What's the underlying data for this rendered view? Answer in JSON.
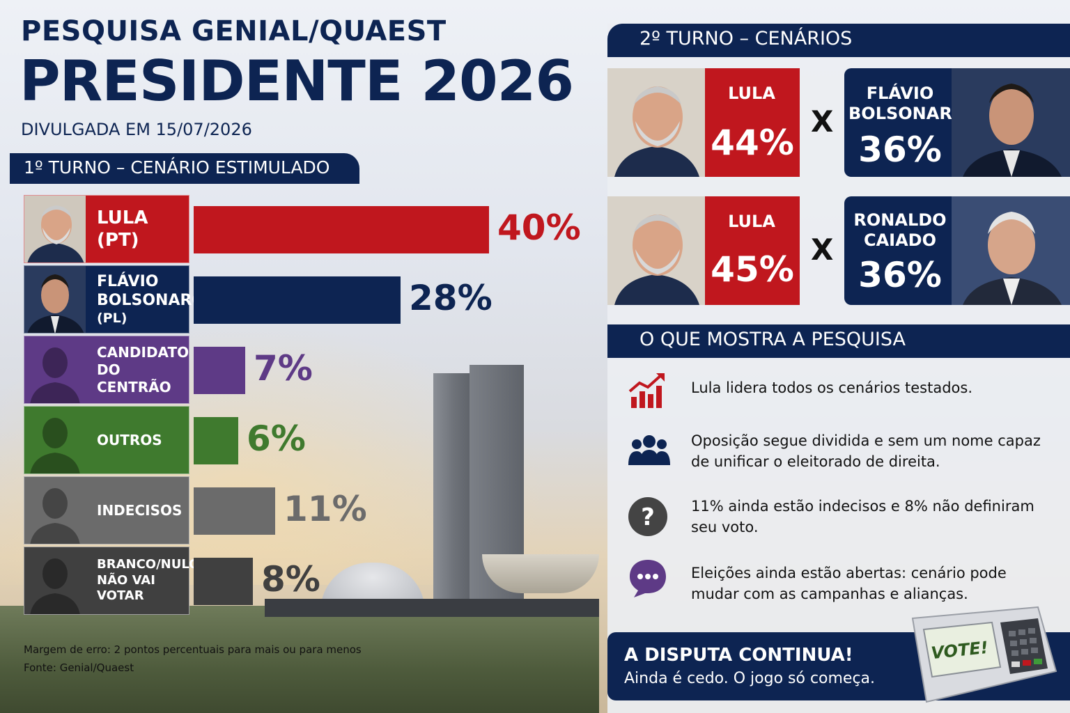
{
  "header": {
    "pre_title": "PESQUISA GENIAL/QUAEST",
    "title": "PRESIDENTE 2026",
    "date_line": "DIVULGADA EM 15/07/2026"
  },
  "first_round": {
    "section_title": "1º TURNO – CENÁRIO ESTIMULADO"
  },
  "chart_data": {
    "type": "bar",
    "title": "1º TURNO – CENÁRIO ESTIMULADO",
    "categories": [
      [
        "LULA",
        "(PT)"
      ],
      [
        "FLÁVIO",
        "BOLSONARO",
        "(PL)"
      ],
      [
        "CANDIDATO",
        "DO CENTRÃO"
      ],
      [
        "OUTROS"
      ],
      [
        "INDECISOS"
      ],
      [
        "BRANCO/NULO/",
        "NÃO VAI VOTAR"
      ]
    ],
    "values": [
      40,
      28,
      7,
      6,
      11,
      8
    ],
    "value_labels": [
      "40%",
      "28%",
      "7%",
      "6%",
      "11%",
      "8%"
    ],
    "colors": [
      "#c0171e",
      "#0d2452",
      "#5e3a86",
      "#3f7a2e",
      "#6b6b6b",
      "#404040"
    ],
    "orientation": "horizontal",
    "xlim": [
      0,
      40
    ]
  },
  "second_round": {
    "section_title": "2º TURNO – CENÁRIOS",
    "vs_symbol": "X",
    "scenarios": [
      {
        "left_name": "LULA",
        "left_pct": "44%",
        "right_name": [
          "FLÁVIO",
          "BOLSONARO"
        ],
        "right_pct": "36%"
      },
      {
        "left_name": "LULA",
        "left_pct": "45%",
        "right_name": [
          "RONALDO",
          "CAIADO"
        ],
        "right_pct": "36%"
      }
    ]
  },
  "insights": {
    "section_title": "O QUE MOSTRA A PESQUISA",
    "items": [
      {
        "icon": "trending-up-chart-icon",
        "text": "Lula lidera todos os cenários testados."
      },
      {
        "icon": "people-group-icon",
        "text": "Oposição segue dividida e sem um nome capaz de unificar o eleitorado de direita."
      },
      {
        "icon": "question-mark-icon",
        "text": "11% ainda estão indecisos e 8% não definiram seu voto."
      },
      {
        "icon": "speech-bubble-icon",
        "text": "Eleições ainda estão abertas: cenário pode mudar com as campanhas e alianças."
      }
    ],
    "colors": {
      "trend": "#c0171e",
      "people": "#0d2452",
      "question": "#444444",
      "bubble": "#5e3a86"
    }
  },
  "footer": {
    "title": "A DISPUTA CONTINUA!",
    "subtitle": "Ainda é cedo. O jogo só começa.",
    "voting_machine_label": "VOTE!"
  },
  "source": {
    "margin": "Margem de erro: 2 pontos percentuais para mais ou para menos",
    "source": "Fonte: Genial/Quaest"
  }
}
